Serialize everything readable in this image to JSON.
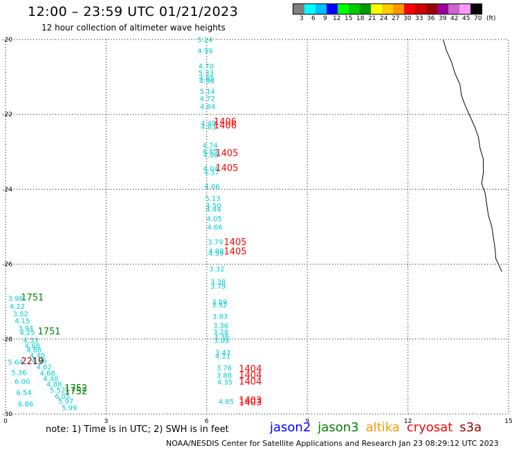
{
  "title": "12:00 – 23:59 UTC 01/21/2023",
  "subtitle": "12 hour collection of altimeter wave heights",
  "legend": {
    "colors": [
      "#808080",
      "#00ffff",
      "#00bfff",
      "#0000ff",
      "#00ff00",
      "#00cc00",
      "#009900",
      "#ffff00",
      "#ffcc00",
      "#ff9900",
      "#ff0000",
      "#cc0000",
      "#990000",
      "#990099",
      "#cc66cc",
      "#ff99ff",
      "#000000"
    ],
    "ticks": [
      "3",
      "6",
      "9",
      "12",
      "15",
      "18",
      "21",
      "24",
      "27",
      "30",
      "33",
      "36",
      "39",
      "42",
      "45",
      "70"
    ],
    "unit": "(ft)"
  },
  "note": "note:  1) Time is in UTC;  2) SWH is in feet",
  "satellites": [
    {
      "name": "jason2",
      "color": "#0000ff"
    },
    {
      "name": "jason3",
      "color": "#008000"
    },
    {
      "name": "altika",
      "color": "#ff9900"
    },
    {
      "name": "cryosat",
      "color": "#ff0000"
    },
    {
      "name": "s3a",
      "color": "#990000"
    }
  ],
  "footer": "NOAA/NESDIS Center for Satellite Applications and Research    Jan 23 08:29:12 UTC 2023",
  "chart_data": {
    "type": "scatter",
    "xlim": [
      0,
      15
    ],
    "ylim": [
      -30,
      -20
    ],
    "xticks": [
      "0",
      "3",
      "6",
      "9",
      "12",
      "15"
    ],
    "yticks": [
      "-20",
      "-22",
      "-24",
      "-26",
      "-28",
      "-30"
    ],
    "grid": true,
    "points": [
      {
        "x": 5.95,
        "y": -20.0,
        "label": "5.24",
        "color": "#00cccc"
      },
      {
        "x": 5.95,
        "y": -20.3,
        "label": "4.99",
        "color": "#00cccc"
      },
      {
        "x": 5.98,
        "y": -20.7,
        "label": "4.70",
        "color": "#00cccc"
      },
      {
        "x": 5.98,
        "y": -20.88,
        "label": "5.33",
        "color": "#00cccc"
      },
      {
        "x": 6.0,
        "y": -21.02,
        "label": "4.85",
        "color": "#00cccc"
      },
      {
        "x": 6.0,
        "y": -21.1,
        "label": "4.96",
        "color": "#00cccc"
      },
      {
        "x": 6.02,
        "y": -21.38,
        "label": "5.14",
        "color": "#00cccc"
      },
      {
        "x": 6.02,
        "y": -21.57,
        "label": "4.72",
        "color": "#00cccc"
      },
      {
        "x": 6.03,
        "y": -21.78,
        "label": "4.84",
        "color": "#00cccc"
      },
      {
        "x": 6.05,
        "y": -22.23,
        "label": "4.49",
        "color": "#00cccc"
      },
      {
        "x": 6.05,
        "y": -22.33,
        "label": "4.63",
        "color": "#00cccc"
      },
      {
        "x": 6.1,
        "y": -22.82,
        "label": "4.74",
        "color": "#00cccc"
      },
      {
        "x": 6.1,
        "y": -22.98,
        "label": "4.85",
        "color": "#00cccc"
      },
      {
        "x": 6.12,
        "y": -23.08,
        "label": "4.98",
        "color": "#00cccc"
      },
      {
        "x": 6.12,
        "y": -23.44,
        "label": "4.04",
        "color": "#00cccc"
      },
      {
        "x": 6.14,
        "y": -23.54,
        "label": "4.37",
        "color": "#00cccc"
      },
      {
        "x": 6.16,
        "y": -23.92,
        "label": "4.66",
        "color": "#00cccc"
      },
      {
        "x": 6.18,
        "y": -24.23,
        "label": "5.13",
        "color": "#00cccc"
      },
      {
        "x": 6.2,
        "y": -24.43,
        "label": "4.50",
        "color": "#00cccc"
      },
      {
        "x": 6.2,
        "y": -24.53,
        "label": "4.44",
        "color": "#00cccc"
      },
      {
        "x": 6.22,
        "y": -24.78,
        "label": "4.05",
        "color": "#00cccc"
      },
      {
        "x": 6.24,
        "y": -25.0,
        "label": "4.66",
        "color": "#00cccc"
      },
      {
        "x": 6.26,
        "y": -25.4,
        "label": "3.79",
        "color": "#00cccc"
      },
      {
        "x": 6.28,
        "y": -25.64,
        "label": "4.09",
        "color": "#00cccc"
      },
      {
        "x": 6.28,
        "y": -25.7,
        "label": "4.59",
        "color": "#00cccc"
      },
      {
        "x": 6.3,
        "y": -26.12,
        "label": "3.32",
        "color": "#00cccc"
      },
      {
        "x": 6.34,
        "y": -26.46,
        "label": "3.38",
        "color": "#00cccc"
      },
      {
        "x": 6.34,
        "y": -26.58,
        "label": "3.79",
        "color": "#00cccc"
      },
      {
        "x": 6.38,
        "y": -27.0,
        "label": "3.59",
        "color": "#00cccc"
      },
      {
        "x": 6.38,
        "y": -27.08,
        "label": "3.52",
        "color": "#00cccc"
      },
      {
        "x": 6.4,
        "y": -27.38,
        "label": "3.83",
        "color": "#00cccc"
      },
      {
        "x": 6.42,
        "y": -27.63,
        "label": "3.36",
        "color": "#00cccc"
      },
      {
        "x": 6.42,
        "y": -27.8,
        "label": "3.28",
        "color": "#00cccc"
      },
      {
        "x": 6.44,
        "y": -27.92,
        "label": "3.36",
        "color": "#00cccc"
      },
      {
        "x": 6.44,
        "y": -28.03,
        "label": "3.09",
        "color": "#00cccc"
      },
      {
        "x": 6.48,
        "y": -28.35,
        "label": "3.43",
        "color": "#00cccc"
      },
      {
        "x": 6.48,
        "y": -28.45,
        "label": "4.11",
        "color": "#00cccc"
      },
      {
        "x": 6.52,
        "y": -28.76,
        "label": "3.76",
        "color": "#00cccc"
      },
      {
        "x": 6.52,
        "y": -28.96,
        "label": "3.88",
        "color": "#00cccc"
      },
      {
        "x": 6.54,
        "y": -29.14,
        "label": "4.35",
        "color": "#00cccc"
      },
      {
        "x": 6.58,
        "y": -29.66,
        "label": "4.85",
        "color": "#00cccc"
      },
      {
        "x": 0.3,
        "y": -26.9,
        "label": "3.98",
        "color": "#00cccc"
      },
      {
        "x": 0.35,
        "y": -27.12,
        "label": "4.22",
        "color": "#00cccc"
      },
      {
        "x": 0.45,
        "y": -27.32,
        "label": "3.52",
        "color": "#00cccc"
      },
      {
        "x": 0.5,
        "y": -27.5,
        "label": "4.15",
        "color": "#00cccc"
      },
      {
        "x": 0.6,
        "y": -27.7,
        "label": "3.94",
        "color": "#00cccc"
      },
      {
        "x": 0.65,
        "y": -27.82,
        "label": "4.25",
        "color": "#00cccc"
      },
      {
        "x": 0.75,
        "y": -28.02,
        "label": "4.33",
        "color": "#00cccc"
      },
      {
        "x": 0.8,
        "y": -28.17,
        "label": "4.68",
        "color": "#00cccc"
      },
      {
        "x": 0.85,
        "y": -28.28,
        "label": "4.68",
        "color": "#00cccc"
      },
      {
        "x": 0.95,
        "y": -28.43,
        "label": "4.40",
        "color": "#00cccc"
      },
      {
        "x": 1.0,
        "y": -28.57,
        "label": "4.86",
        "color": "#00cccc"
      },
      {
        "x": 1.15,
        "y": -28.73,
        "label": "4.82",
        "color": "#00cccc"
      },
      {
        "x": 1.25,
        "y": -28.9,
        "label": "4.68",
        "color": "#00cccc"
      },
      {
        "x": 1.35,
        "y": -29.05,
        "label": "4.40",
        "color": "#00cccc"
      },
      {
        "x": 1.45,
        "y": -29.2,
        "label": "4.88",
        "color": "#00cccc"
      },
      {
        "x": 1.55,
        "y": -29.35,
        "label": "5.52",
        "color": "#00cccc"
      },
      {
        "x": 1.7,
        "y": -29.52,
        "label": "6.05",
        "color": "#00cccc"
      },
      {
        "x": 1.8,
        "y": -29.65,
        "label": "5.97",
        "color": "#00cccc"
      },
      {
        "x": 1.9,
        "y": -29.82,
        "label": "5.99",
        "color": "#00cccc"
      },
      {
        "x": 0.3,
        "y": -28.6,
        "label": "5.64",
        "color": "#00cccc"
      },
      {
        "x": 0.4,
        "y": -28.88,
        "label": "5.36",
        "color": "#00cccc"
      },
      {
        "x": 0.5,
        "y": -29.12,
        "label": "6.00",
        "color": "#00cccc"
      },
      {
        "x": 0.55,
        "y": -29.42,
        "label": "6.54",
        "color": "#00cccc"
      },
      {
        "x": 0.6,
        "y": -29.72,
        "label": "6.86",
        "color": "#00cccc"
      }
    ],
    "time_labels": [
      {
        "x": 6.55,
        "y": -22.18,
        "label": "1406",
        "color": "#ff0000"
      },
      {
        "x": 6.55,
        "y": -22.28,
        "label": "1406",
        "color": "#ff0000"
      },
      {
        "x": 6.6,
        "y": -23.02,
        "label": "1405",
        "color": "#ff0000"
      },
      {
        "x": 6.6,
        "y": -23.42,
        "label": "1405",
        "color": "#ff0000"
      },
      {
        "x": 6.85,
        "y": -25.4,
        "label": "1405",
        "color": "#ff0000"
      },
      {
        "x": 6.85,
        "y": -25.65,
        "label": "1405",
        "color": "#ff0000"
      },
      {
        "x": 7.3,
        "y": -28.78,
        "label": "1404",
        "color": "#ff0000"
      },
      {
        "x": 7.3,
        "y": -28.95,
        "label": "1404",
        "color": "#ff0000"
      },
      {
        "x": 7.3,
        "y": -29.12,
        "label": "1404",
        "color": "#ff0000"
      },
      {
        "x": 7.3,
        "y": -29.62,
        "label": "1403",
        "color": "#ff0000"
      },
      {
        "x": 7.3,
        "y": -29.68,
        "label": "1403",
        "color": "#ff0000"
      },
      {
        "x": 0.8,
        "y": -26.88,
        "label": "1751",
        "color": "#008000"
      },
      {
        "x": 1.3,
        "y": -27.78,
        "label": "1751",
        "color": "#008000"
      },
      {
        "x": 2.1,
        "y": -29.3,
        "label": "1752",
        "color": "#008000"
      },
      {
        "x": 2.1,
        "y": -29.38,
        "label": "1752",
        "color": "#008000"
      },
      {
        "x": 0.8,
        "y": -28.58,
        "label": "2219",
        "color": "#990000"
      }
    ],
    "coastline": [
      [
        13.05,
        -20.0
      ],
      [
        13.15,
        -20.3
      ],
      [
        13.3,
        -20.6
      ],
      [
        13.4,
        -20.9
      ],
      [
        13.55,
        -21.2
      ],
      [
        13.6,
        -21.5
      ],
      [
        13.7,
        -21.75
      ],
      [
        13.85,
        -22.05
      ],
      [
        14.0,
        -22.35
      ],
      [
        14.1,
        -22.6
      ],
      [
        14.15,
        -22.9
      ],
      [
        14.25,
        -23.2
      ],
      [
        14.25,
        -23.55
      ],
      [
        14.2,
        -23.85
      ],
      [
        14.3,
        -24.1
      ],
      [
        14.35,
        -24.4
      ],
      [
        14.4,
        -24.7
      ],
      [
        14.5,
        -25.0
      ],
      [
        14.55,
        -25.3
      ],
      [
        14.6,
        -25.6
      ],
      [
        14.62,
        -25.85
      ],
      [
        14.7,
        -26.0
      ],
      [
        14.8,
        -26.2
      ]
    ]
  }
}
